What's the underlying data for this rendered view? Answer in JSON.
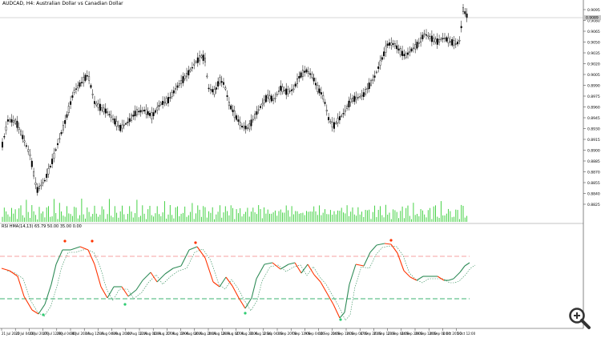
{
  "window": {
    "symbol_label": "AUDCAD, H4: Australian Dollar vs Canadian Dollar",
    "indicator_label": "RSI HMA(14,13) 65.79 50.00 35.00 0.00"
  },
  "price_axis": {
    "ticks": [
      "0.9095",
      "0.9080",
      "0.9065",
      "0.9050",
      "0.9035",
      "0.9020",
      "0.9005",
      "0.8990",
      "0.8975",
      "0.8960",
      "0.8945",
      "0.8930",
      "0.8915",
      "0.8900",
      "0.8885",
      "0.8870",
      "0.8855",
      "0.8840",
      "0.8825"
    ],
    "current_price": "0.9089"
  },
  "time_axis": {
    "labels": [
      "21 Jul 2020",
      "22 Jul 04:00",
      "23 Jul 20:00",
      "27 Jul 12:00",
      "29 Jul 04:00",
      "30 Jul 20:00",
      "3 Aug 12:00",
      "5 Aug 04:00",
      "6 Aug 20:00",
      "10 Aug 12:00",
      "12 Aug 04:00",
      "13 Aug 20:00",
      "17 Aug 12:00",
      "19 Aug 04:00",
      "20 Aug 20:00",
      "24 Aug 12:00",
      "26 Aug 04:00",
      "27 Aug 20:00",
      "31 Aug 12:00",
      "2 Sep 04:00",
      "3 Sep 20:00",
      "7 Sep 12:00",
      "9 Sep 04:00",
      "10 Sep 20:00",
      "14 Sep 12:00",
      "16 Sep 04:00",
      "17 Sep 20:00",
      "21 Sep 12:00",
      "23 Sep 04:00",
      "24 Sep 20:00",
      "28 Sep 12:00",
      "30 Sep 04:00",
      "1 Oct 20:00",
      "5 Oct 12:00"
    ]
  },
  "colors": {
    "candle": "#000000",
    "volume": "#32cd32",
    "rsi_up": "#2e8b57",
    "rsi_down": "#ff3300",
    "level_upper": "#f4a0a0",
    "level_lower": "#3cb371",
    "signal_top": "#ff3300",
    "signal_bottom": "#2ecc71"
  },
  "controls": {
    "zoom_icon": "magnifier-plus-icon"
  }
}
